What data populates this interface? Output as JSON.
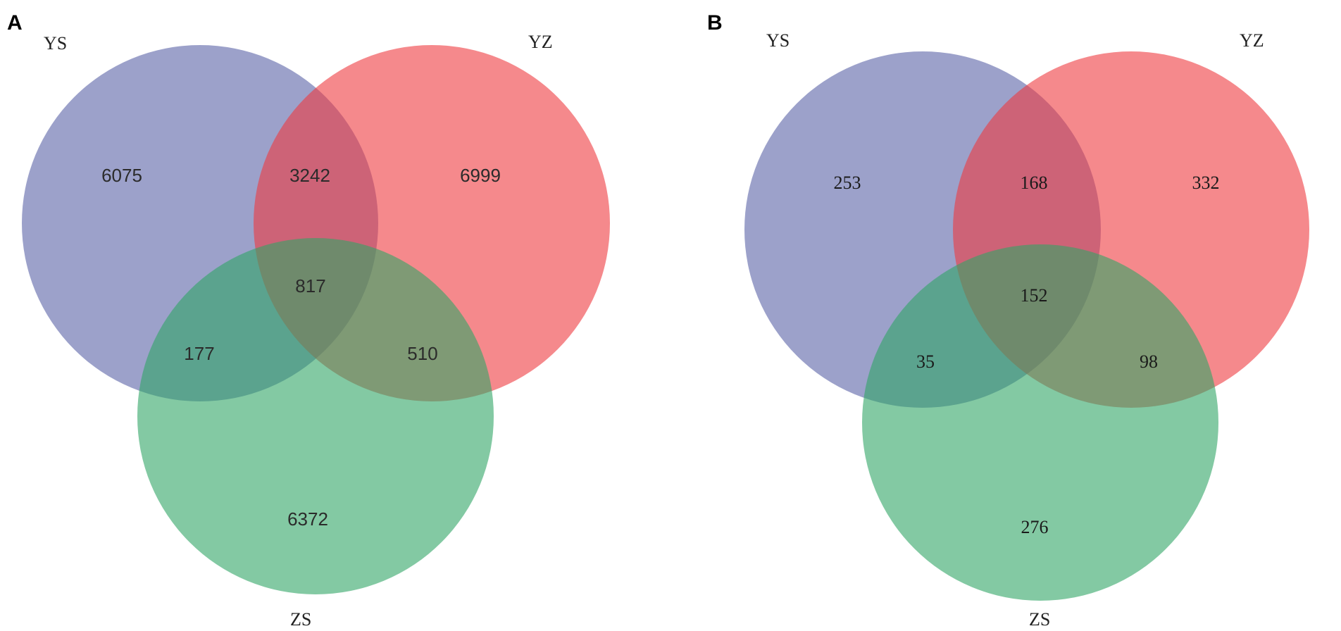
{
  "colors": {
    "ys": "#5a63a6",
    "yz": "#ef3a3f",
    "zs": "#31a565",
    "fill_opacity": 0.6
  },
  "panels": [
    {
      "letter": "A",
      "labels": {
        "ys": "YS",
        "yz": "YZ",
        "zs": "ZS"
      },
      "counts": {
        "ys_only": "6075",
        "ys_yz": "3242",
        "yz_only": "6999",
        "all": "817",
        "ys_zs": "177",
        "yz_zs": "510",
        "zs_only": "6372"
      }
    },
    {
      "letter": "B",
      "labels": {
        "ys": "YS",
        "yz": "YZ",
        "zs": "ZS"
      },
      "counts": {
        "ys_only": "253",
        "ys_yz": "168",
        "yz_only": "332",
        "all": "152",
        "ys_zs": "35",
        "yz_zs": "98",
        "zs_only": "276"
      }
    }
  ]
}
